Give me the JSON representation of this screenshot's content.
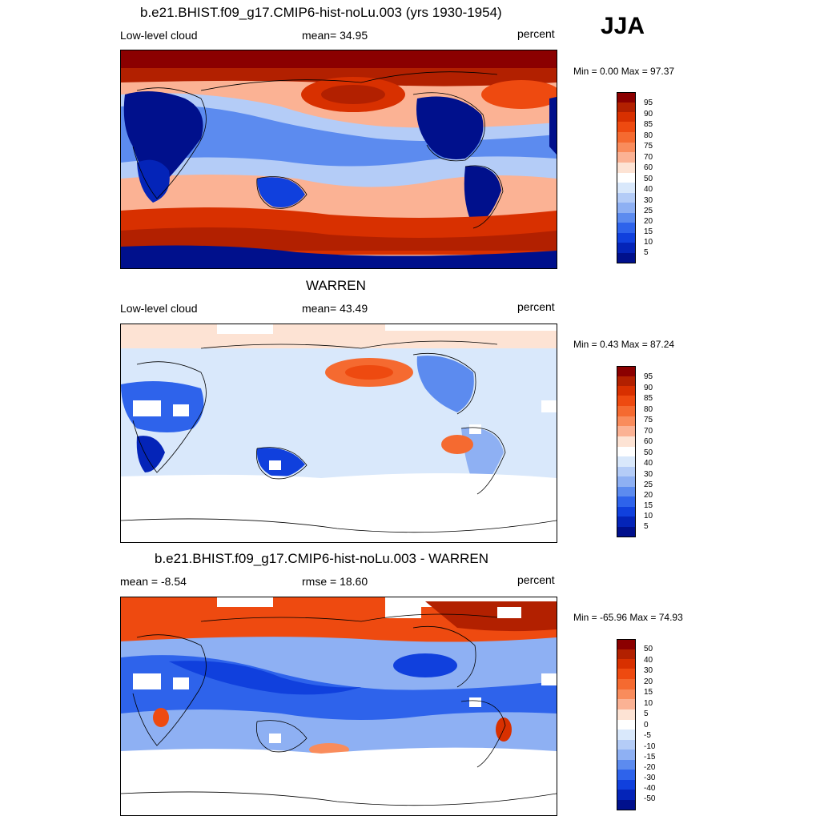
{
  "season": "JJA",
  "panels": [
    {
      "title": "b.e21.BHIST.f09_g17.CMIP6-hist-noLu.003 (yrs 1930-1954)",
      "left_label": "Low-level cloud",
      "center_label": "mean=  34.95",
      "right_label": "percent",
      "minmax": "Min =   0.00 Max =  97.37",
      "colorbar_labels": [
        "95",
        "90",
        "85",
        "80",
        "75",
        "70",
        "60",
        "50",
        "40",
        "30",
        "25",
        "20",
        "15",
        "10",
        "5"
      ],
      "colors": [
        "#8b0000",
        "#b22000",
        "#d83000",
        "#ee4a10",
        "#f56a30",
        "#f98c5c",
        "#fbb294",
        "#fde3d4",
        "#ffffff",
        "#d9e8fb",
        "#b4ccf7",
        "#8eb0f3",
        "#5c8bef",
        "#2e63eb",
        "#1040dd",
        "#0424b8",
        "#00108c"
      ]
    },
    {
      "title": "WARREN",
      "left_label": "Low-level cloud",
      "center_label": "mean=  43.49",
      "right_label": "percent",
      "minmax": "Min =   0.43 Max =  87.24",
      "colorbar_labels": [
        "95",
        "90",
        "85",
        "80",
        "75",
        "70",
        "60",
        "50",
        "40",
        "30",
        "25",
        "20",
        "15",
        "10",
        "5"
      ],
      "colors": [
        "#8b0000",
        "#b22000",
        "#d83000",
        "#ee4a10",
        "#f56a30",
        "#f98c5c",
        "#fbb294",
        "#fde3d4",
        "#ffffff",
        "#d9e8fb",
        "#b4ccf7",
        "#8eb0f3",
        "#5c8bef",
        "#2e63eb",
        "#1040dd",
        "#0424b8",
        "#00108c"
      ]
    },
    {
      "title": "b.e21.BHIST.f09_g17.CMIP6-hist-noLu.003 - WARREN",
      "left_label": "mean =  -8.54",
      "center_label": "rmse =  18.60",
      "right_label": "percent",
      "minmax": "Min = -65.96 Max =  74.93",
      "colorbar_labels": [
        "50",
        "40",
        "30",
        "20",
        "15",
        "10",
        "5",
        "0",
        "-5",
        "-10",
        "-15",
        "-20",
        "-30",
        "-40",
        "-50"
      ],
      "colors": [
        "#8b0000",
        "#b22000",
        "#d83000",
        "#ee4a10",
        "#f56a30",
        "#f98c5c",
        "#fbb294",
        "#fde3d4",
        "#ffffff",
        "#d9e8fb",
        "#b4ccf7",
        "#8eb0f3",
        "#5c8bef",
        "#2e63eb",
        "#1040dd",
        "#0424b8",
        "#00108c"
      ]
    }
  ]
}
